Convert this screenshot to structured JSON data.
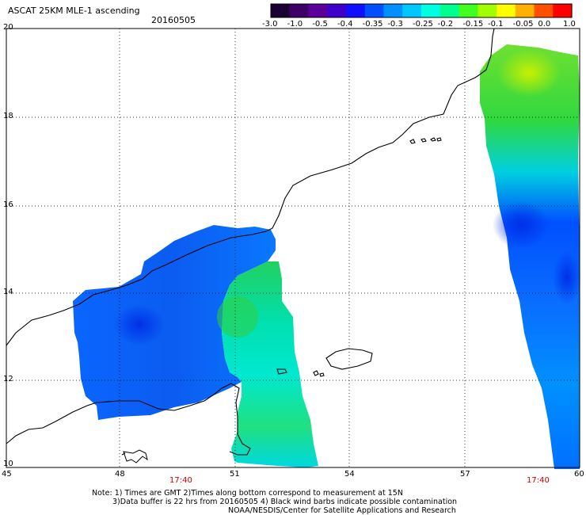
{
  "header": {
    "product": "ASCAT 25KM MLE-1 ascending",
    "date": "20160505"
  },
  "colorbar": {
    "labels": [
      "-3.0",
      "-1.0",
      "-0.5",
      "-0.4",
      "-0.35",
      "-0.3",
      "-0.25",
      "-0.2",
      "-0.15",
      "-0.1",
      "-0.05",
      "0.0",
      "1.0"
    ],
    "colors": [
      "#1a0033",
      "#3d0066",
      "#5a0099",
      "#4000cc",
      "#1010ff",
      "#0050ff",
      "#0090ff",
      "#00c8ff",
      "#00ffe0",
      "#00ff90",
      "#40ff20",
      "#a0ff00",
      "#ffff00",
      "#ffb000",
      "#ff5000",
      "#ff0000"
    ]
  },
  "axes": {
    "lon_labels": [
      "45",
      "48",
      "51",
      "54",
      "57",
      "60"
    ],
    "lat_labels": [
      "20",
      "18",
      "16",
      "14",
      "12",
      "10"
    ]
  },
  "times": [
    "17:40",
    "17:40"
  ],
  "notes": [
    "Note: 1) Times are GMT 2)Times along bottom correspond to measurement at 15N",
    "3)Data buffer is 22 hrs from 20160505 4) Black wind barbs indicate possible contamination",
    "NOAA/NESDIS/Center for Satellite Applications and Research"
  ]
}
